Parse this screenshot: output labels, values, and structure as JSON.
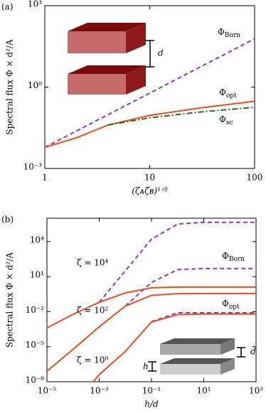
{
  "chart_data": [
    {
      "type": "line",
      "panel_label": "(a)",
      "xlabel": "(ζᴀζʙ)¹ᐟ²",
      "ylabel": "Spectral flux Φ × d²/A",
      "log_x": true,
      "log_y": true,
      "xlim": [
        1,
        100
      ],
      "ylim": [
        0.001,
        1000
      ],
      "xticks": [
        1,
        10,
        100
      ],
      "yticks": [
        {
          "value": 0.001,
          "label": "10⁻³"
        },
        {
          "value": 1,
          "label": "10⁰"
        },
        {
          "value": 1000,
          "label": "10³"
        }
      ],
      "series": [
        {
          "name": "ΦBorn",
          "color": "#8a3cb0",
          "dash": "dashed",
          "x": [
            1,
            10,
            100
          ],
          "values": [
            0.006,
            0.6,
            60
          ]
        },
        {
          "name": "Φopt",
          "color": "#f04a1a",
          "dash": "solid",
          "x": [
            1,
            2,
            4,
            10,
            30,
            100
          ],
          "values": [
            0.006,
            0.0135,
            0.04,
            0.09,
            0.17,
            0.3
          ]
        },
        {
          "name": "Φsc",
          "color": "#2d6a1f",
          "dash": "dashdot",
          "x": [
            4,
            10,
            30,
            100
          ],
          "values": [
            0.04,
            0.074,
            0.12,
            0.18
          ]
        }
      ],
      "annotations": [
        "d"
      ]
    },
    {
      "type": "line",
      "panel_label": "(b)",
      "xlabel": "h/d",
      "ylabel": "Spectral flux Φ × d²/A",
      "log_x": true,
      "log_y": true,
      "xlim": [
        1e-05,
        1000
      ],
      "ylim": [
        1e-08,
        1000000
      ],
      "xticks": [
        {
          "value": 1e-05,
          "label": "10⁻⁵"
        },
        {
          "value": 0.001,
          "label": "10⁻³"
        },
        {
          "value": 0.1,
          "label": "10⁻¹"
        },
        {
          "value": 10,
          "label": "10¹"
        },
        {
          "value": 1000,
          "label": "10³"
        }
      ],
      "yticks": [
        {
          "value": 1e-08,
          "label": "10⁻⁸"
        },
        {
          "value": 1e-05,
          "label": "10⁻⁵"
        },
        {
          "value": 0.01,
          "label": "10⁻²"
        },
        {
          "value": 10,
          "label": "10¹"
        },
        {
          "value": 10000,
          "label": "10⁴"
        }
      ],
      "series": [
        {
          "color": "#8a3cb0",
          "dash": "dashed",
          "x": [
            0.001,
            0.01,
            0.1,
            1,
            10,
            100,
            1000
          ],
          "values": [
            0.063,
            32,
            16000,
            316000,
            450000,
            450000,
            450000
          ]
        },
        {
          "color": "#f04a1a",
          "dash": "solid",
          "x": [
            1e-05,
            0.0001,
            0.001,
            0.01,
            0.1,
            1,
            10,
            100,
            1000
          ],
          "values": [
            0.0004,
            0.006,
            0.063,
            0.4,
            1.1,
            1.26,
            1.26,
            1.26,
            1.26
          ]
        },
        {
          "color": "#8a3cb0",
          "dash": "dashed",
          "x": [
            0.01,
            0.1,
            1,
            10,
            100,
            1000
          ],
          "values": [
            0.03,
            3.2,
            40,
            50,
            50,
            50
          ]
        },
        {
          "color": "#f04a1a",
          "dash": "solid",
          "x": [
            1e-05,
            0.0001,
            0.001,
            0.01,
            0.1,
            1,
            10,
            100,
            1000
          ],
          "values": [
            8e-08,
            6e-06,
            0.0005,
            0.03,
            0.25,
            0.35,
            0.36,
            0.36,
            0.36
          ]
        },
        {
          "color": "#8a3cb0",
          "dash": "dashed",
          "x": [
            0.1,
            1,
            10,
            100,
            1000
          ],
          "values": [
            0.0014,
            0.008,
            0.008,
            0.008,
            0.008
          ]
        },
        {
          "color": "#f04a1a",
          "dash": "solid",
          "x": [
            0.0006,
            0.001,
            0.01,
            0.1,
            1,
            10,
            100,
            1000
          ],
          "values": [
            1e-08,
            4e-08,
            4e-06,
            0.0013,
            0.0056,
            0.0063,
            0.0063,
            0.0063
          ]
        }
      ],
      "annotations": [
        "ζ = 10⁴",
        "ζ = 10²",
        "ζ = 10⁰",
        "ΦBorn",
        "Φopt",
        "d",
        "h"
      ]
    }
  ]
}
